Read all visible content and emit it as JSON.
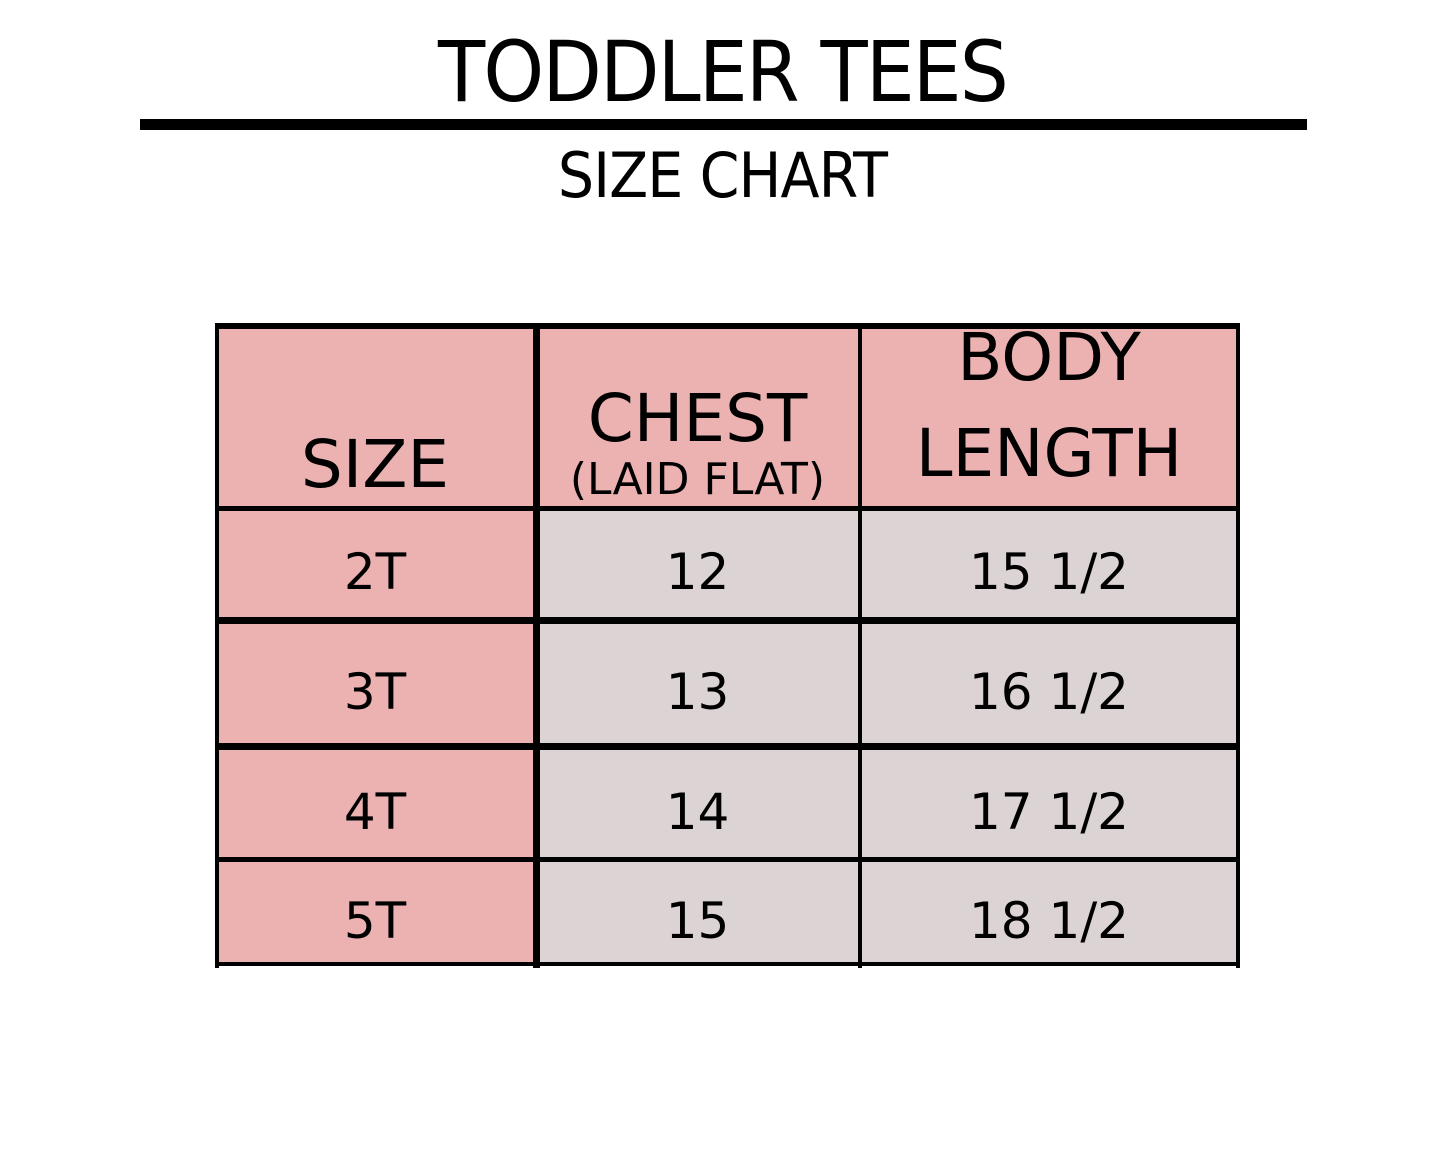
{
  "header": {
    "title": "TODDLER TEES",
    "subtitle": "SIZE CHART"
  },
  "colors": {
    "header_bg": "#ecb2b2",
    "size_col_bg": "#ecb2b2",
    "value_bg": "#dcd4d4"
  },
  "table": {
    "columns": [
      {
        "label": "SIZE"
      },
      {
        "label": "CHEST",
        "sublabel": "(LAID FLAT)"
      },
      {
        "label": "BODY",
        "label2": "LENGTH"
      }
    ],
    "rows": [
      {
        "size": "2T",
        "chest": "12",
        "length": "15 1/2"
      },
      {
        "size": "3T",
        "chest": "13",
        "length": "16 1/2"
      },
      {
        "size": "4T",
        "chest": "14",
        "length": "17 1/2"
      },
      {
        "size": "5T",
        "chest": "15",
        "length": "18 1/2"
      }
    ]
  }
}
